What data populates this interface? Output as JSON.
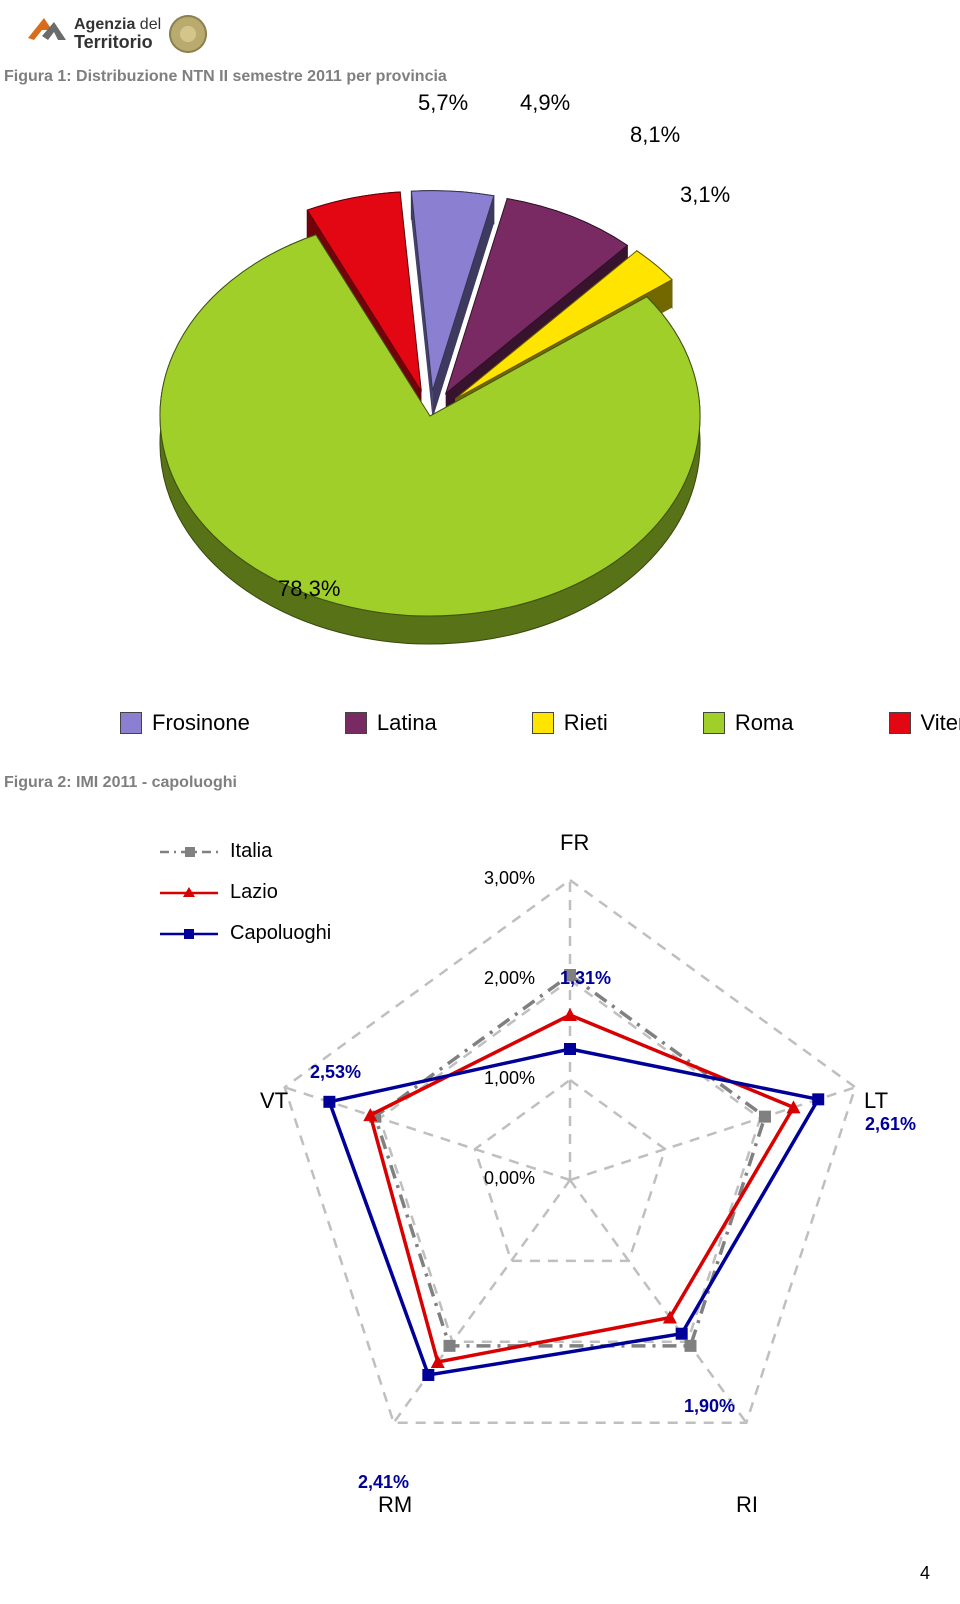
{
  "header": {
    "logo_line1_a": "Agenzia",
    "logo_line1_b": "del",
    "logo_line2": "Territorio",
    "logo_colors": {
      "orange": "#d96b1a",
      "grey": "#6b6b6b"
    }
  },
  "figure1": {
    "caption": "Figura 1: Distribuzione NTN II semestre 2011 per provincia",
    "type": "pie-3d-exploded",
    "slices": [
      {
        "label": "Frosinone",
        "value": 4.9,
        "display": "4,9%",
        "color": "#8a7fd1"
      },
      {
        "label": "Latina",
        "value": 8.1,
        "display": "8,1%",
        "color": "#7a2a63"
      },
      {
        "label": "Rieti",
        "value": 3.1,
        "display": "3,1%",
        "color": "#ffe400"
      },
      {
        "label": "Roma",
        "value": 78.3,
        "display": "78,3%",
        "color": "#a0cf2a"
      },
      {
        "label": "Viterbo",
        "value": 5.7,
        "display": "5,7%",
        "color": "#e30613"
      }
    ],
    "background_color": "#ffffff"
  },
  "figure2": {
    "caption": "Figura 2: IMI 2011 - capoluoghi",
    "type": "radar",
    "axes": [
      "FR",
      "LT",
      "RI",
      "RM",
      "VT"
    ],
    "tick_labels": [
      "0,00%",
      "1,00%",
      "2,00%",
      "3,00%"
    ],
    "tick_values": [
      0,
      1,
      2,
      3
    ],
    "max": 3,
    "grid_color": "#bfbfbf",
    "series": [
      {
        "name": "Italia",
        "style": "dash-dot",
        "color": "#808080",
        "marker": "square",
        "values": {
          "FR": 2.05,
          "LT": 2.05,
          "RI": 2.05,
          "RM": 2.05,
          "VT": 2.05
        }
      },
      {
        "name": "Lazio",
        "style": "solid",
        "color": "#d80000",
        "marker": "triangle",
        "values": {
          "FR": 1.65,
          "LT": 2.35,
          "RI": 1.7,
          "RM": 2.25,
          "VT": 2.1
        }
      },
      {
        "name": "Capoluoghi",
        "style": "solid",
        "color": "#000099",
        "marker": "square",
        "values": {
          "FR": 1.31,
          "LT": 2.61,
          "RI": 1.9,
          "RM": 2.41,
          "VT": 2.53
        }
      }
    ],
    "value_labels": {
      "FR": "1,31%",
      "LT": "2,61%",
      "RI": "1,90%",
      "RM": "2,41%",
      "VT": "2,53%"
    }
  },
  "page_number": "4"
}
